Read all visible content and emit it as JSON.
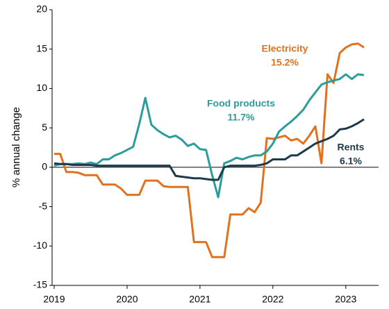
{
  "chart_data": {
    "type": "line",
    "y_label": "% annual change",
    "x": [
      2019.0,
      2019.083,
      2019.167,
      2019.25,
      2019.333,
      2019.417,
      2019.5,
      2019.583,
      2019.667,
      2019.75,
      2019.833,
      2019.917,
      2020.0,
      2020.083,
      2020.167,
      2020.25,
      2020.333,
      2020.417,
      2020.5,
      2020.583,
      2020.667,
      2020.75,
      2020.833,
      2020.917,
      2021.0,
      2021.083,
      2021.167,
      2021.25,
      2021.333,
      2021.417,
      2021.5,
      2021.583,
      2021.667,
      2021.75,
      2021.833,
      2021.917,
      2022.0,
      2022.083,
      2022.167,
      2022.25,
      2022.333,
      2022.417,
      2022.5,
      2022.583,
      2022.667,
      2022.75,
      2022.833,
      2022.917,
      2023.0,
      2023.083,
      2023.167,
      2023.25
    ],
    "series": [
      {
        "name": "Electricity",
        "end_label": "15.2%",
        "color": "#e2711d",
        "values": [
          1.7,
          1.7,
          -0.6,
          -0.6,
          -0.7,
          -1.0,
          -1.0,
          -1.0,
          -2.2,
          -2.2,
          -2.2,
          -2.7,
          -3.5,
          -3.5,
          -3.5,
          -1.7,
          -1.7,
          -1.7,
          -2.4,
          -2.5,
          -2.5,
          -2.5,
          -2.5,
          -9.5,
          -9.5,
          -9.5,
          -11.4,
          -11.4,
          -11.4,
          -6.0,
          -6.0,
          -6.0,
          -5.2,
          -5.7,
          -4.5,
          3.7,
          3.6,
          3.8,
          4.0,
          3.4,
          3.6,
          3.0,
          4.0,
          5.2,
          0.5,
          11.8,
          10.7,
          14.5,
          15.2,
          15.6,
          15.7,
          15.2
        ]
      },
      {
        "name": "Food products",
        "end_label": "11.7%",
        "color": "#2a9d9a",
        "values": [
          0.2,
          0.4,
          0.4,
          0.4,
          0.5,
          0.4,
          0.6,
          0.4,
          1.0,
          1.0,
          1.5,
          1.8,
          2.2,
          2.6,
          5.5,
          8.8,
          5.4,
          4.7,
          4.2,
          3.8,
          4.0,
          3.5,
          2.7,
          3.0,
          2.3,
          2.2,
          -1.0,
          -3.8,
          0.5,
          0.8,
          1.2,
          1.0,
          1.3,
          1.5,
          1.5,
          2.0,
          3.0,
          4.5,
          5.2,
          5.8,
          6.5,
          7.3,
          8.5,
          9.5,
          10.5,
          10.8,
          11.0,
          11.2,
          11.8,
          11.2,
          11.8,
          11.7
        ]
      },
      {
        "name": "Rents",
        "end_label": "6.1%",
        "color": "#1b3a4b",
        "values": [
          0.5,
          0.4,
          0.4,
          0.3,
          0.3,
          0.3,
          0.3,
          0.2,
          0.2,
          0.2,
          0.2,
          0.2,
          0.2,
          0.2,
          0.2,
          0.2,
          0.2,
          0.2,
          0.2,
          0.2,
          -1.1,
          -1.2,
          -1.3,
          -1.4,
          -1.4,
          -1.5,
          -1.6,
          -1.6,
          0.0,
          0.2,
          0.2,
          0.2,
          0.2,
          0.2,
          0.3,
          0.5,
          1.0,
          1.0,
          1.0,
          1.5,
          1.5,
          2.0,
          2.5,
          3.0,
          3.3,
          3.6,
          4.0,
          4.8,
          4.9,
          5.2,
          5.6,
          6.1
        ]
      }
    ],
    "xlim": [
      2019,
      2023.45
    ],
    "xticks": [
      2019,
      2020,
      2021,
      2022,
      2023
    ],
    "ylim": [
      -15,
      20
    ],
    "yticks": [
      -15,
      -10,
      -5,
      0,
      5,
      10,
      15,
      20
    ],
    "zero_line": true
  }
}
